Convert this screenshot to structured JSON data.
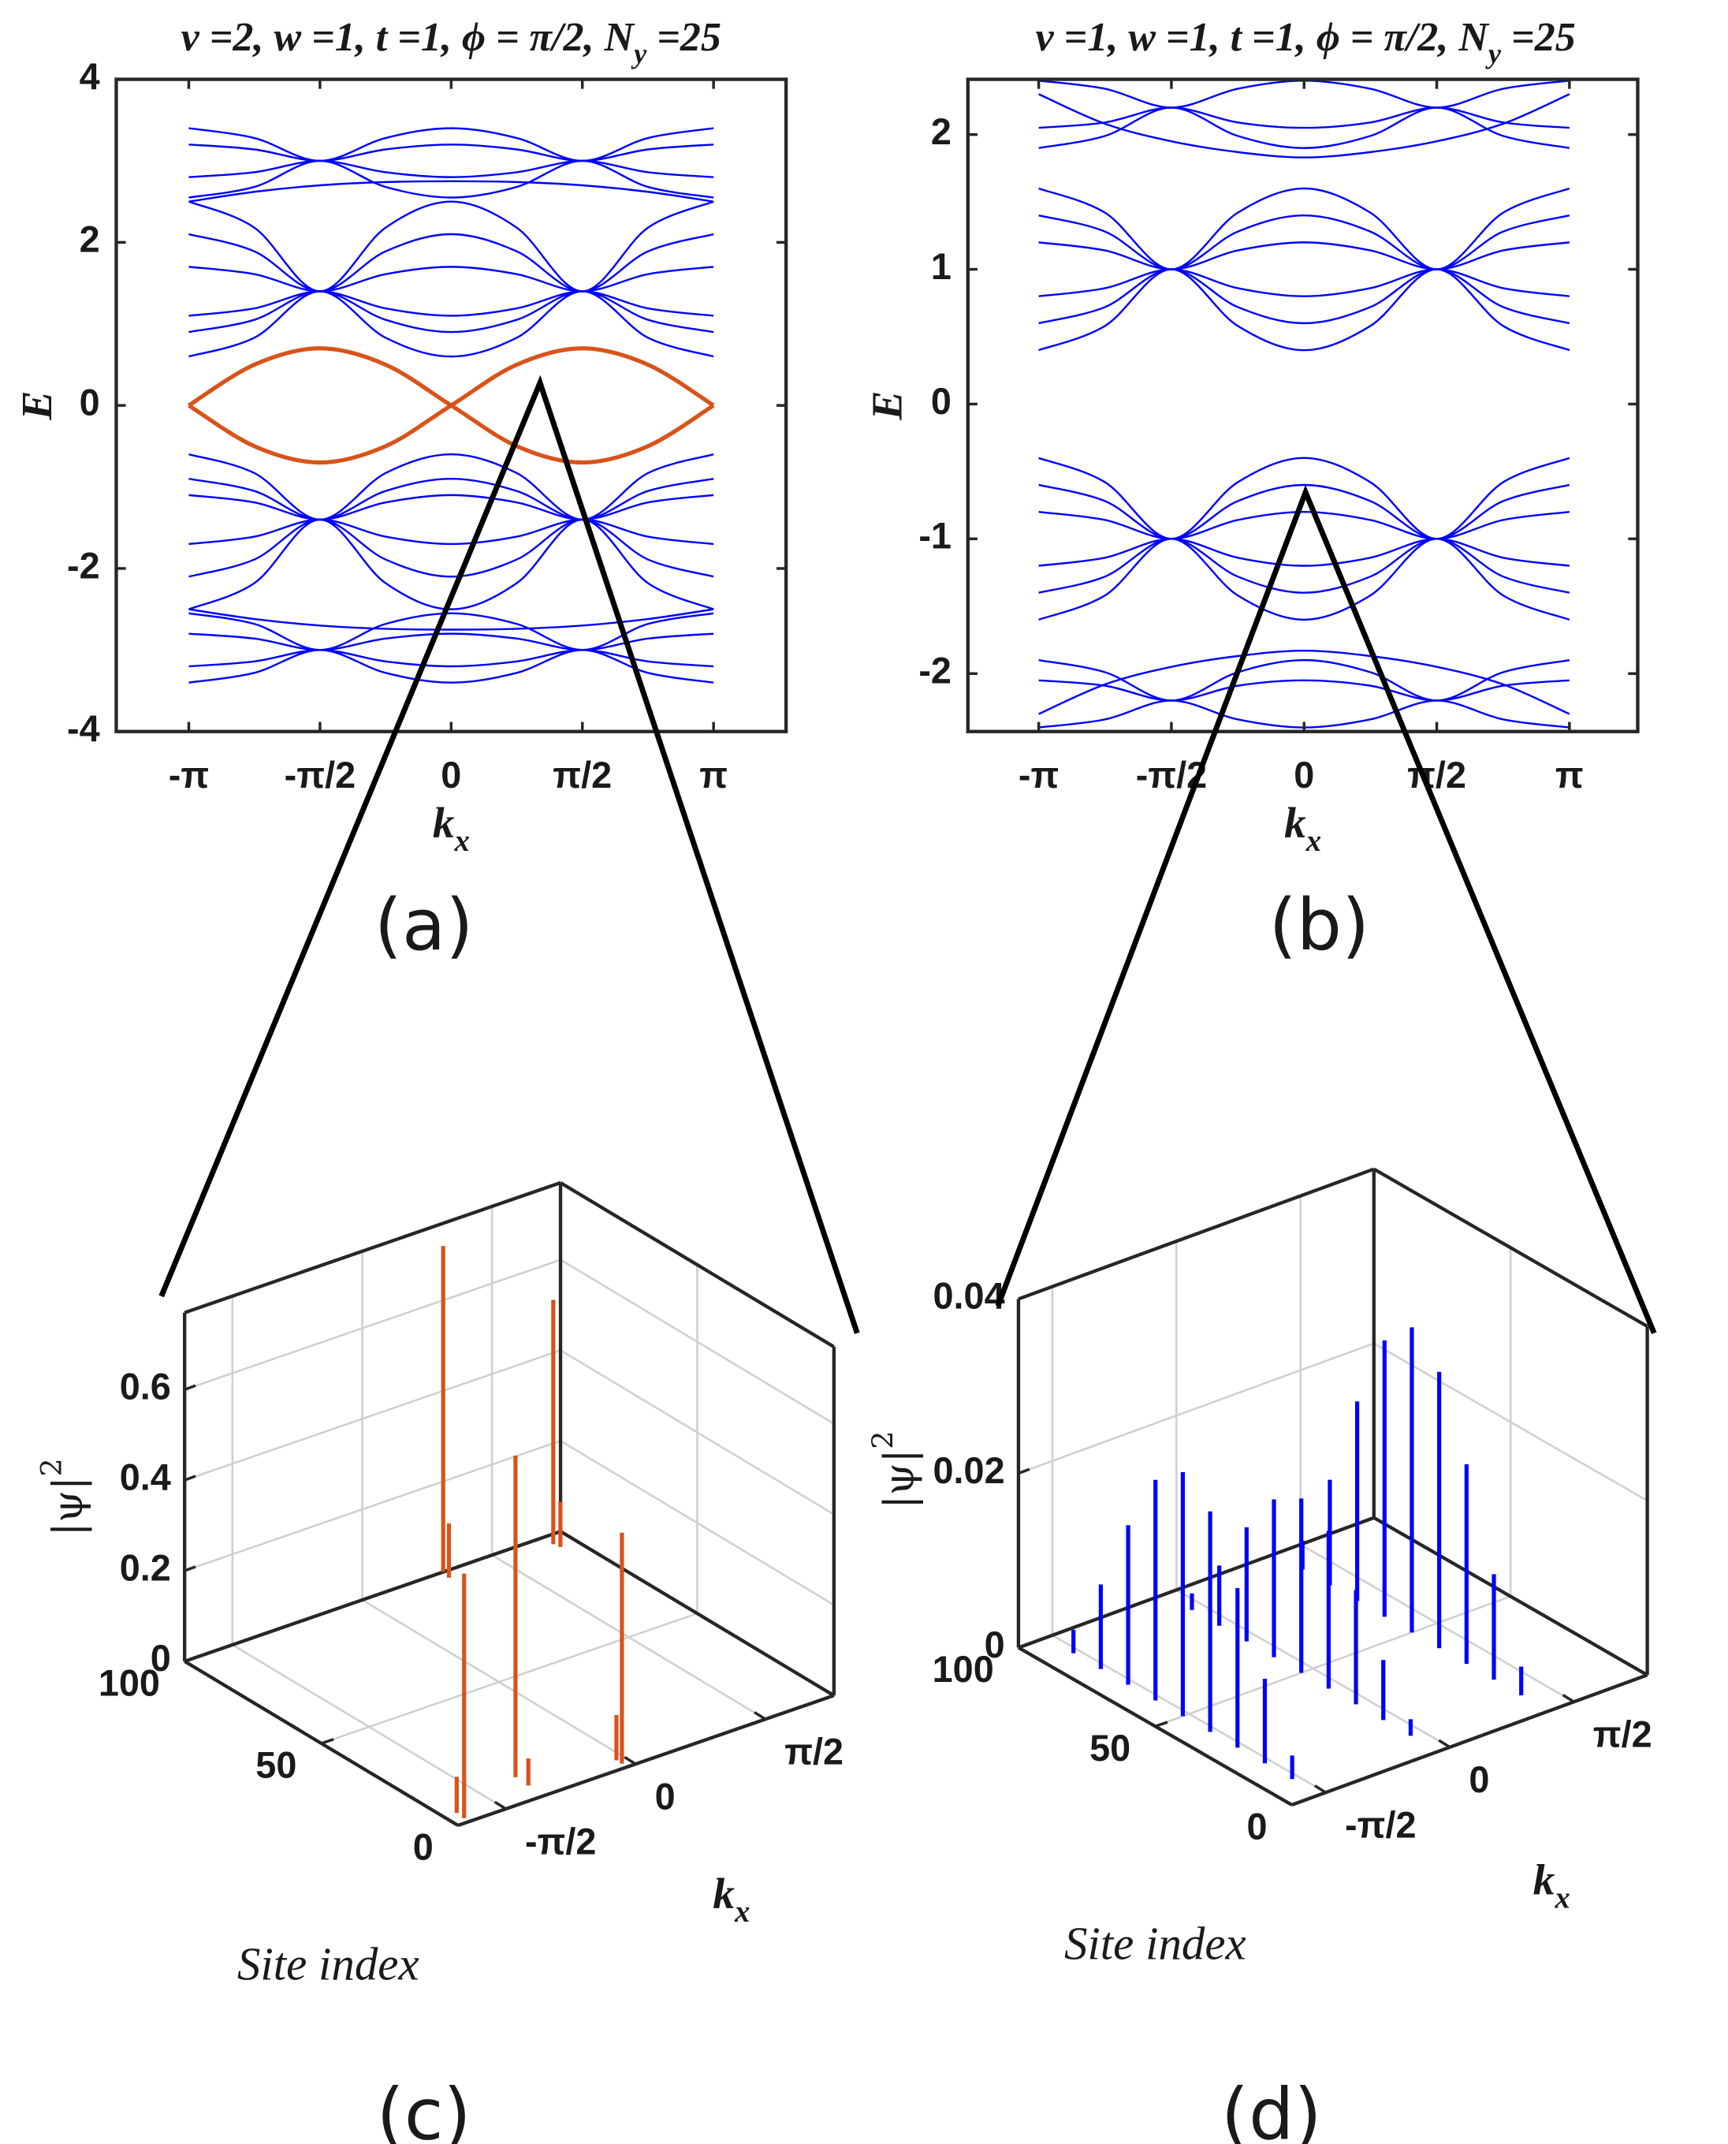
{
  "chart_data": [
    {
      "type": "line",
      "panel_label": "(a)",
      "title": [
        "v =2, w =1, t =1, ϕ = π/2, N",
        "y",
        " =25"
      ],
      "xlabel": [
        "k",
        "x"
      ],
      "ylabel": "E",
      "x": [
        -3.1416,
        -2.3562,
        -1.5708,
        -0.7854,
        0,
        0.7854,
        1.5708,
        2.3562,
        3.1416
      ],
      "xlim": [
        -4.01,
        4.01
      ],
      "ylim": [
        -4,
        4
      ],
      "xticks": [
        {
          "value": -3.1416,
          "label": "-π"
        },
        {
          "value": -1.5708,
          "label": "-π/2"
        },
        0,
        {
          "value": 1.5708,
          "label": "π/2"
        },
        {
          "value": 3.1416,
          "label": "π"
        }
      ],
      "yticks": [
        -4,
        -2,
        0,
        2,
        4
      ],
      "series": [
        {
          "color": "#0000ff",
          "values": [
            3.4,
            3.28,
            3.0,
            3.28,
            3.4,
            3.28,
            3.0,
            3.28,
            3.4
          ]
        },
        {
          "color": "#0000ff",
          "values": [
            3.2,
            3.14,
            3.0,
            3.14,
            3.2,
            3.14,
            3.0,
            3.14,
            3.2
          ]
        },
        {
          "color": "#0000ff",
          "values": [
            2.8,
            2.86,
            3.0,
            2.86,
            2.8,
            2.86,
            3.0,
            2.86,
            2.8
          ]
        },
        {
          "color": "#0000ff",
          "values": [
            2.55,
            2.68,
            3.0,
            2.68,
            2.55,
            2.68,
            3.0,
            2.68,
            2.55
          ]
        },
        {
          "color": "#0000ff",
          "values": [
            2.5,
            2.62,
            2.7,
            2.74,
            2.75,
            2.74,
            2.7,
            2.62,
            2.5
          ]
        },
        {
          "color": "#0000ff",
          "values": [
            2.5,
            2.18,
            1.4,
            2.18,
            2.5,
            2.18,
            1.4,
            2.18,
            2.5
          ]
        },
        {
          "color": "#0000ff",
          "values": [
            2.1,
            1.89,
            1.4,
            1.89,
            2.1,
            1.89,
            1.4,
            1.89,
            2.1
          ]
        },
        {
          "color": "#0000ff",
          "values": [
            1.7,
            1.61,
            1.4,
            1.61,
            1.7,
            1.61,
            1.4,
            1.61,
            1.7
          ]
        },
        {
          "color": "#0000ff",
          "values": [
            1.1,
            1.19,
            1.4,
            1.19,
            1.1,
            1.19,
            1.4,
            1.19,
            1.1
          ]
        },
        {
          "color": "#0000ff",
          "values": [
            0.9,
            1.05,
            1.4,
            1.05,
            0.9,
            1.05,
            1.4,
            1.05,
            0.9
          ]
        },
        {
          "color": "#0000ff",
          "values": [
            0.6,
            0.83,
            1.4,
            0.83,
            0.6,
            0.83,
            1.4,
            0.83,
            0.6
          ]
        },
        {
          "color": "#0000ff",
          "values": [
            -0.6,
            -0.83,
            -1.4,
            -0.83,
            -0.6,
            -0.83,
            -1.4,
            -0.83,
            -0.6
          ]
        },
        {
          "color": "#0000ff",
          "values": [
            -0.9,
            -1.05,
            -1.4,
            -1.05,
            -0.9,
            -1.05,
            -1.4,
            -1.05,
            -0.9
          ]
        },
        {
          "color": "#0000ff",
          "values": [
            -1.1,
            -1.19,
            -1.4,
            -1.19,
            -1.1,
            -1.19,
            -1.4,
            -1.19,
            -1.1
          ]
        },
        {
          "color": "#0000ff",
          "values": [
            -1.7,
            -1.61,
            -1.4,
            -1.61,
            -1.7,
            -1.61,
            -1.4,
            -1.61,
            -1.7
          ]
        },
        {
          "color": "#0000ff",
          "values": [
            -2.1,
            -1.89,
            -1.4,
            -1.89,
            -2.1,
            -1.89,
            -1.4,
            -1.89,
            -2.1
          ]
        },
        {
          "color": "#0000ff",
          "values": [
            -2.5,
            -2.18,
            -1.4,
            -2.18,
            -2.5,
            -2.18,
            -1.4,
            -2.18,
            -2.5
          ]
        },
        {
          "color": "#0000ff",
          "values": [
            -2.5,
            -2.62,
            -2.7,
            -2.74,
            -2.75,
            -2.74,
            -2.7,
            -2.62,
            -2.5
          ]
        },
        {
          "color": "#0000ff",
          "values": [
            -2.55,
            -2.68,
            -3.0,
            -2.68,
            -2.55,
            -2.68,
            -3.0,
            -2.68,
            -2.55
          ]
        },
        {
          "color": "#0000ff",
          "values": [
            -2.8,
            -2.86,
            -3.0,
            -2.86,
            -2.8,
            -2.86,
            -3.0,
            -2.86,
            -2.8
          ]
        },
        {
          "color": "#0000ff",
          "values": [
            -3.2,
            -3.14,
            -3.0,
            -3.14,
            -3.2,
            -3.14,
            -3.0,
            -3.14,
            -3.2
          ]
        },
        {
          "color": "#0000ff",
          "values": [
            -3.4,
            -3.28,
            -3.0,
            -3.28,
            -3.4,
            -3.28,
            -3.0,
            -3.28,
            -3.4
          ]
        },
        {
          "color": "#d95319",
          "values": [
            0,
            0.5,
            0.7,
            0.5,
            0,
            -0.5,
            -0.7,
            -0.5,
            0
          ]
        },
        {
          "color": "#d95319",
          "values": [
            0,
            -0.5,
            -0.7,
            -0.5,
            0,
            0.5,
            0.7,
            0.5,
            0
          ]
        }
      ]
    },
    {
      "type": "line",
      "panel_label": "(b)",
      "title": [
        "v =1, w =1, t =1, ϕ = π/2, N",
        "y",
        " =25"
      ],
      "xlabel": [
        "k",
        "x"
      ],
      "ylabel": "E",
      "x": [
        -3.1416,
        -2.3562,
        -1.5708,
        -0.7854,
        0,
        0.7854,
        1.5708,
        2.3562,
        3.1416
      ],
      "xlim": [
        -3.98,
        3.95
      ],
      "ylim": [
        -2.43,
        2.41
      ],
      "xticks": [
        {
          "value": -3.1416,
          "label": "-π"
        },
        {
          "value": -1.5708,
          "label": "-π/2"
        },
        0,
        {
          "value": 1.5708,
          "label": "π/2"
        },
        {
          "value": 3.1416,
          "label": "π"
        }
      ],
      "yticks": [
        -2,
        -1,
        0,
        1,
        2
      ],
      "series": [
        {
          "color": "#0000ff",
          "values": [
            2.4,
            2.34,
            2.2,
            2.34,
            2.4,
            2.34,
            2.2,
            2.34,
            2.4
          ]
        },
        {
          "color": "#0000ff",
          "values": [
            2.05,
            2.09,
            2.2,
            2.09,
            2.05,
            2.09,
            2.2,
            2.09,
            2.05
          ]
        },
        {
          "color": "#0000ff",
          "values": [
            1.9,
            1.99,
            2.2,
            1.99,
            1.9,
            1.99,
            2.2,
            1.99,
            1.9
          ]
        },
        {
          "color": "#0000ff",
          "values": [
            2.3,
            2.08,
            1.95,
            1.87,
            1.83,
            1.87,
            1.95,
            2.08,
            2.3
          ]
        },
        {
          "color": "#0000ff",
          "values": [
            1.6,
            1.42,
            1.0,
            1.42,
            1.6,
            1.42,
            1.0,
            1.42,
            1.6
          ]
        },
        {
          "color": "#0000ff",
          "values": [
            1.4,
            1.28,
            1.0,
            1.28,
            1.4,
            1.28,
            1.0,
            1.28,
            1.4
          ]
        },
        {
          "color": "#0000ff",
          "values": [
            1.2,
            1.14,
            1.0,
            1.14,
            1.2,
            1.14,
            1.0,
            1.14,
            1.2
          ]
        },
        {
          "color": "#0000ff",
          "values": [
            0.8,
            0.86,
            1.0,
            0.86,
            0.8,
            0.86,
            1.0,
            0.86,
            0.8
          ]
        },
        {
          "color": "#0000ff",
          "values": [
            0.6,
            0.72,
            1.0,
            0.72,
            0.6,
            0.72,
            1.0,
            0.72,
            0.6
          ]
        },
        {
          "color": "#0000ff",
          "values": [
            0.4,
            0.58,
            1.0,
            0.58,
            0.4,
            0.58,
            1.0,
            0.58,
            0.4
          ]
        },
        {
          "color": "#0000ff",
          "values": [
            -0.4,
            -0.58,
            -1.0,
            -0.58,
            -0.4,
            -0.58,
            -1.0,
            -0.58,
            -0.4
          ]
        },
        {
          "color": "#0000ff",
          "values": [
            -0.6,
            -0.72,
            -1.0,
            -0.72,
            -0.6,
            -0.72,
            -1.0,
            -0.72,
            -0.6
          ]
        },
        {
          "color": "#0000ff",
          "values": [
            -0.8,
            -0.86,
            -1.0,
            -0.86,
            -0.8,
            -0.86,
            -1.0,
            -0.86,
            -0.8
          ]
        },
        {
          "color": "#0000ff",
          "values": [
            -1.2,
            -1.14,
            -1.0,
            -1.14,
            -1.2,
            -1.14,
            -1.0,
            -1.14,
            -1.2
          ]
        },
        {
          "color": "#0000ff",
          "values": [
            -1.4,
            -1.28,
            -1.0,
            -1.28,
            -1.4,
            -1.28,
            -1.0,
            -1.28,
            -1.4
          ]
        },
        {
          "color": "#0000ff",
          "values": [
            -1.6,
            -1.42,
            -1.0,
            -1.42,
            -1.6,
            -1.42,
            -1.0,
            -1.42,
            -1.6
          ]
        },
        {
          "color": "#0000ff",
          "values": [
            -2.3,
            -2.08,
            -1.95,
            -1.87,
            -1.83,
            -1.87,
            -1.95,
            -2.08,
            -2.3
          ]
        },
        {
          "color": "#0000ff",
          "values": [
            -1.9,
            -1.99,
            -2.2,
            -1.99,
            -1.9,
            -1.99,
            -2.2,
            -1.99,
            -1.9
          ]
        },
        {
          "color": "#0000ff",
          "values": [
            -2.05,
            -2.09,
            -2.2,
            -2.09,
            -2.05,
            -2.09,
            -2.2,
            -2.09,
            -2.05
          ]
        },
        {
          "color": "#0000ff",
          "values": [
            -2.4,
            -2.34,
            -2.2,
            -2.34,
            -2.4,
            -2.34,
            -2.2,
            -2.34,
            -2.4
          ]
        }
      ]
    },
    {
      "type": "bar3d",
      "panel_label": "(c)",
      "zlabel": [
        "|ψ|",
        "2"
      ],
      "site_label": "Site index",
      "kx_label": [
        "k",
        "x"
      ],
      "site_lim": [
        0,
        100
      ],
      "site_ticks": [
        0,
        50,
        100
      ],
      "kx_lim": [
        -2.15,
        2.4
      ],
      "kx_ticks": [
        {
          "value": -1.5708,
          "label": "-π/2"
        },
        0,
        {
          "value": 1.5708,
          "label": "π/2"
        }
      ],
      "zlim": [
        0,
        0.77
      ],
      "zticks": [
        0,
        0.2,
        0.4,
        0.6
      ],
      "color": "#d95319",
      "sticks": {
        "site": [
          100,
          97,
          96,
          94,
          11,
          6,
          2,
          4,
          2,
          5
        ],
        "kx": [
          0.98,
          0.95,
          2.18,
          2.2,
          -1.09,
          -1.1,
          -0.1,
          -0.1,
          -2.01,
          -2.0
        ],
        "values": [
          0.72,
          0.12,
          0.54,
          0.1,
          0.71,
          0.06,
          0.51,
          0.1,
          0.54,
          0.08
        ]
      }
    },
    {
      "type": "bar3d",
      "panel_label": "(d)",
      "zlabel": [
        "|ψ|",
        "2"
      ],
      "site_label": "Site index",
      "kx_label": [
        "k",
        "x"
      ],
      "site_lim": [
        0,
        100
      ],
      "site_ticks": [
        0,
        50,
        100
      ],
      "kx_lim": [
        -2.0,
        2.5
      ],
      "kx_ticks": [
        {
          "value": -1.5708,
          "label": "-π/2"
        },
        0,
        {
          "value": 1.5708,
          "label": "π/2"
        }
      ],
      "zlim": [
        0,
        0.04
      ],
      "zticks": [
        0,
        0.02,
        0.04
      ],
      "color": "#0000ff",
      "sticks": {
        "site": [
          10,
          20,
          30,
          40,
          50,
          60,
          70,
          80,
          90,
          10,
          20,
          30,
          40,
          50,
          60,
          70,
          80,
          90,
          10,
          20,
          30,
          40,
          50,
          60,
          70,
          80,
          90
        ],
        "kx": [
          -1.65,
          -1.65,
          -1.65,
          -1.65,
          -1.65,
          -1.65,
          -1.65,
          -1.65,
          -1.65,
          -0.15,
          -0.15,
          -0.15,
          -0.15,
          -0.15,
          -0.15,
          -0.15,
          -0.15,
          -0.15,
          1.25,
          1.25,
          1.25,
          1.25,
          1.25,
          1.25,
          1.25,
          1.25,
          1.25
        ],
        "values": [
          0.0027,
          0.0097,
          0.0183,
          0.0253,
          0.028,
          0.0253,
          0.0183,
          0.0097,
          0.0027,
          0.0019,
          0.0069,
          0.0131,
          0.0181,
          0.02,
          0.0181,
          0.0131,
          0.0069,
          0.0019,
          0.0033,
          0.0121,
          0.0229,
          0.0317,
          0.035,
          0.0317,
          0.0229,
          0.0121,
          0.0033
        ]
      }
    }
  ]
}
